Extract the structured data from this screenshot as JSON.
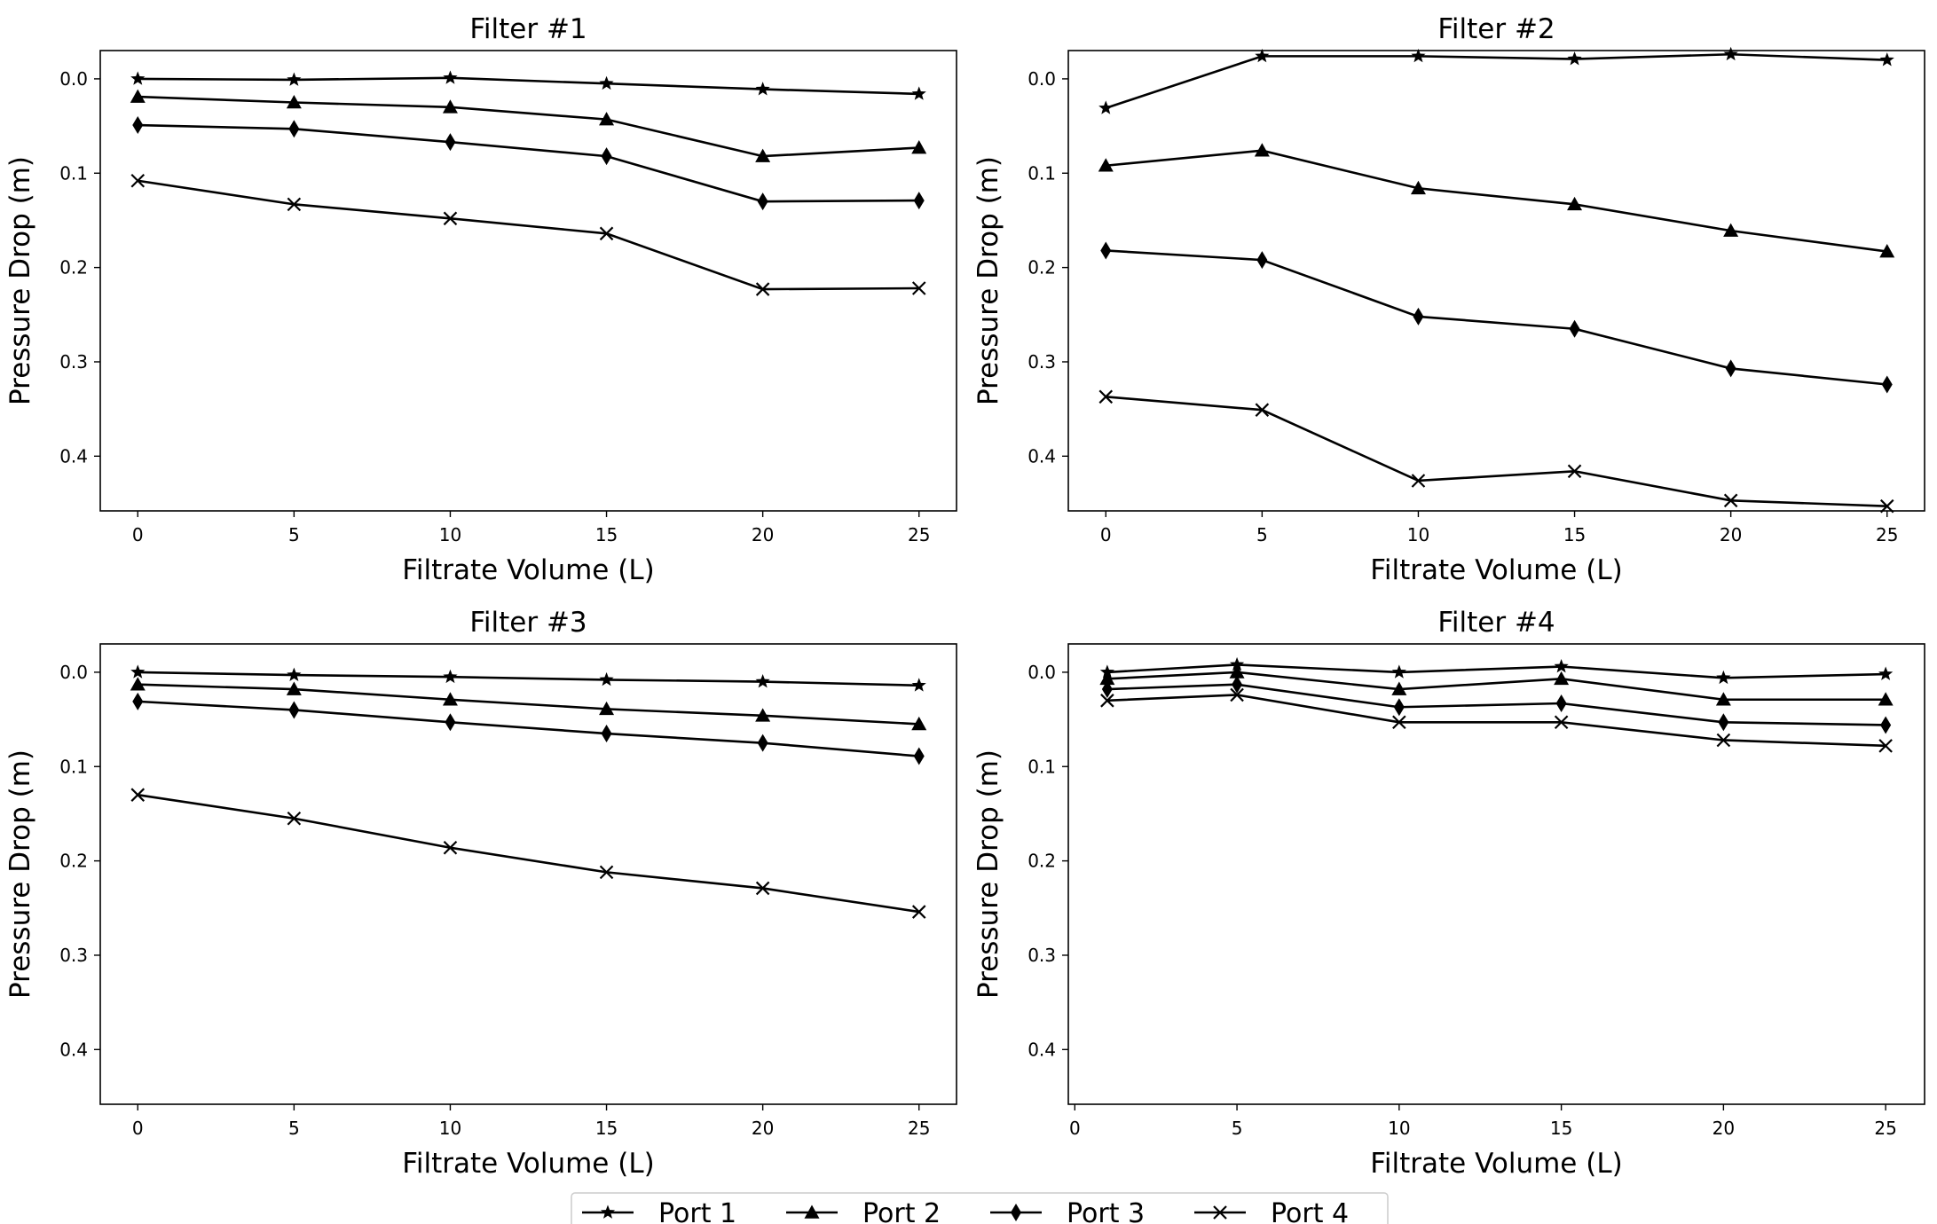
{
  "chart_data": [
    {
      "type": "line",
      "title": "Filter #1",
      "xlabel": "Filtrate Volume (L)",
      "ylabel": "Pressure Drop (m)",
      "x": [
        0,
        5,
        10,
        15,
        20,
        25
      ],
      "xlim": [
        -1.2,
        26.2
      ],
      "ylim": [
        0.458,
        -0.03
      ],
      "y_inverted": true,
      "xticks": [
        0,
        5,
        10,
        15,
        20,
        25
      ],
      "yticks": [
        0.0,
        0.1,
        0.2,
        0.3,
        0.4
      ],
      "xtick_labels": [
        "0",
        "5",
        "10",
        "15",
        "20",
        "25"
      ],
      "ytick_labels": [
        "0.0",
        "0.1",
        "0.2",
        "0.3",
        "0.4"
      ],
      "grid": false,
      "series": [
        {
          "name": "Port 1",
          "marker": "star",
          "values": [
            0.0,
            0.001,
            -0.001,
            0.005,
            0.011,
            0.016
          ]
        },
        {
          "name": "Port 2",
          "marker": "triangle",
          "values": [
            0.019,
            0.025,
            0.03,
            0.043,
            0.082,
            0.073
          ]
        },
        {
          "name": "Port 3",
          "marker": "diamond",
          "values": [
            0.049,
            0.053,
            0.067,
            0.082,
            0.13,
            0.129
          ]
        },
        {
          "name": "Port 4",
          "marker": "x",
          "values": [
            0.108,
            0.133,
            0.148,
            0.164,
            0.223,
            0.222
          ]
        }
      ]
    },
    {
      "type": "line",
      "title": "Filter #2",
      "xlabel": "Filtrate Volume (L)",
      "ylabel": "Pressure Drop (m)",
      "x": [
        0,
        5,
        10,
        15,
        20,
        25
      ],
      "xlim": [
        -1.2,
        26.2
      ],
      "ylim": [
        0.458,
        -0.03
      ],
      "y_inverted": true,
      "xticks": [
        0,
        5,
        10,
        15,
        20,
        25
      ],
      "yticks": [
        0.0,
        0.1,
        0.2,
        0.3,
        0.4
      ],
      "xtick_labels": [
        "0",
        "5",
        "10",
        "15",
        "20",
        "25"
      ],
      "ytick_labels": [
        "0.0",
        "0.1",
        "0.2",
        "0.3",
        "0.4"
      ],
      "grid": false,
      "series": [
        {
          "name": "Port 1",
          "marker": "star",
          "values": [
            0.031,
            -0.024,
            -0.024,
            -0.021,
            -0.026,
            -0.02
          ]
        },
        {
          "name": "Port 2",
          "marker": "triangle",
          "values": [
            0.092,
            0.076,
            0.116,
            0.133,
            0.161,
            0.183
          ]
        },
        {
          "name": "Port 3",
          "marker": "diamond",
          "values": [
            0.182,
            0.192,
            0.252,
            0.265,
            0.307,
            0.324
          ]
        },
        {
          "name": "Port 4",
          "marker": "x",
          "values": [
            0.337,
            0.351,
            0.426,
            0.416,
            0.447,
            0.453
          ]
        }
      ]
    },
    {
      "type": "line",
      "title": "Filter #3",
      "xlabel": "Filtrate Volume (L)",
      "ylabel": "Pressure Drop (m)",
      "x": [
        0,
        5,
        10,
        15,
        20,
        25
      ],
      "xlim": [
        -1.2,
        26.2
      ],
      "ylim": [
        0.458,
        -0.03
      ],
      "y_inverted": true,
      "xticks": [
        0,
        5,
        10,
        15,
        20,
        25
      ],
      "yticks": [
        0.0,
        0.1,
        0.2,
        0.3,
        0.4
      ],
      "xtick_labels": [
        "0",
        "5",
        "10",
        "15",
        "20",
        "25"
      ],
      "ytick_labels": [
        "0.0",
        "0.1",
        "0.2",
        "0.3",
        "0.4"
      ],
      "grid": false,
      "series": [
        {
          "name": "Port 1",
          "marker": "star",
          "values": [
            0.0,
            0.003,
            0.005,
            0.008,
            0.01,
            0.014
          ]
        },
        {
          "name": "Port 2",
          "marker": "triangle",
          "values": [
            0.013,
            0.018,
            0.029,
            0.039,
            0.046,
            0.055
          ]
        },
        {
          "name": "Port 3",
          "marker": "diamond",
          "values": [
            0.031,
            0.04,
            0.053,
            0.065,
            0.075,
            0.089
          ]
        },
        {
          "name": "Port 4",
          "marker": "x",
          "values": [
            0.13,
            0.155,
            0.186,
            0.212,
            0.229,
            0.254
          ]
        }
      ]
    },
    {
      "type": "line",
      "title": "Filter #4",
      "xlabel": "Filtrate Volume (L)",
      "ylabel": "Pressure Drop (m)",
      "x": [
        1,
        5,
        10,
        15,
        20,
        25
      ],
      "xlim": [
        -0.2,
        26.2
      ],
      "ylim": [
        0.458,
        -0.03
      ],
      "y_inverted": true,
      "xticks": [
        0,
        5,
        10,
        15,
        20,
        25
      ],
      "yticks": [
        0.0,
        0.1,
        0.2,
        0.3,
        0.4
      ],
      "xtick_labels": [
        "0",
        "5",
        "10",
        "15",
        "20",
        "25"
      ],
      "ytick_labels": [
        "0.0",
        "0.1",
        "0.2",
        "0.3",
        "0.4"
      ],
      "grid": false,
      "series": [
        {
          "name": "Port 1",
          "marker": "star",
          "values": [
            0.0,
            -0.008,
            0.0,
            -0.006,
            0.006,
            0.002
          ]
        },
        {
          "name": "Port 2",
          "marker": "triangle",
          "values": [
            0.007,
            0.0,
            0.018,
            0.007,
            0.029,
            0.029
          ]
        },
        {
          "name": "Port 3",
          "marker": "diamond",
          "values": [
            0.018,
            0.013,
            0.037,
            0.033,
            0.053,
            0.056
          ]
        },
        {
          "name": "Port 4",
          "marker": "x",
          "values": [
            0.03,
            0.024,
            0.053,
            0.053,
            0.072,
            0.078
          ]
        }
      ]
    }
  ],
  "legend": {
    "placement": "bottom-center",
    "entries": [
      {
        "label": "Port 1",
        "marker": "star"
      },
      {
        "label": "Port 2",
        "marker": "triangle"
      },
      {
        "label": "Port 3",
        "marker": "diamond"
      },
      {
        "label": "Port 4",
        "marker": "x"
      }
    ]
  },
  "colors": {
    "line": "#000000",
    "background": "#ffffff",
    "legend_border": "#cccccc"
  }
}
